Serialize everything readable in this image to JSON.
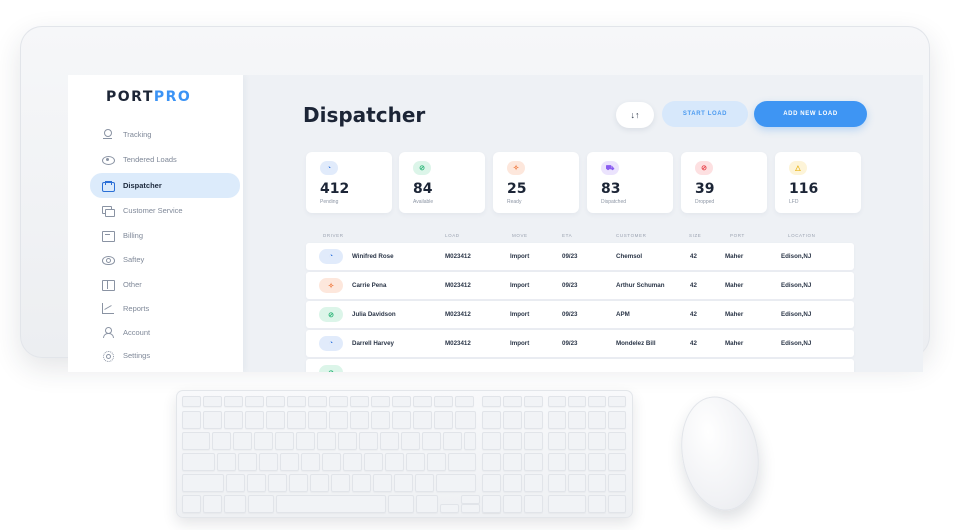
{
  "brand": {
    "logo_main": "PORT",
    "logo_accent": "PRO"
  },
  "sidebar": {
    "items": [
      {
        "label": "Tracking",
        "icon": "location-pin-icon",
        "active": false
      },
      {
        "label": "Tendered Loads",
        "icon": "eye-icon",
        "active": false
      },
      {
        "label": "Dispatcher",
        "icon": "truck-card-icon",
        "active": true
      },
      {
        "label": "Customer Service",
        "icon": "chat-icon",
        "active": false
      },
      {
        "label": "Billing",
        "icon": "billing-icon",
        "active": false
      },
      {
        "label": "Saftey",
        "icon": "shield-icon",
        "active": false
      },
      {
        "label": "Other",
        "icon": "grid-icon",
        "active": false
      },
      {
        "label": "Reports",
        "icon": "chart-icon",
        "active": false
      },
      {
        "label": "Account",
        "icon": "user-icon",
        "active": false
      },
      {
        "label": "Settings",
        "icon": "gear-icon",
        "active": false
      }
    ]
  },
  "header": {
    "title": "Dispatcher",
    "filter_glyph": "↓↑",
    "start_load_label": "START LOAD",
    "add_new_load_label": "ADD NEW LOAD"
  },
  "stats": [
    {
      "value": "412",
      "label": "Pending",
      "icon": "pending-icon",
      "glyph": "◔",
      "color": "#3b7be0",
      "bg": "#e1ebfb"
    },
    {
      "value": "84",
      "label": "Available",
      "icon": "available-icon",
      "glyph": "⊘",
      "color": "#2fb67a",
      "bg": "#dcf5e9"
    },
    {
      "value": "25",
      "label": "Ready",
      "icon": "ready-icon",
      "glyph": "✧",
      "color": "#f0783c",
      "bg": "#fde7dc"
    },
    {
      "value": "83",
      "label": "Dispatched",
      "icon": "dispatched-icon",
      "glyph": "⛟",
      "color": "#8a5cf0",
      "bg": "#ebe3fd"
    },
    {
      "value": "39",
      "label": "Dropped",
      "icon": "dropped-icon",
      "glyph": "⊘",
      "color": "#e8434a",
      "bg": "#fde0e1"
    },
    {
      "value": "116",
      "label": "LFD",
      "icon": "lfd-icon",
      "glyph": "△",
      "color": "#e8b417",
      "bg": "#fdf4d8"
    }
  ],
  "table": {
    "headers": [
      "DRIVER",
      "LOAD",
      "MOVE",
      "ETA",
      "CUSTOMER",
      "SIZE",
      "PORT",
      "LOCATION"
    ],
    "rows": [
      {
        "driver": "Winifred Rose",
        "load": "M023412",
        "move": "Import",
        "eta": "09/23",
        "customer": "Chemsol",
        "size": "42",
        "port": "Maher",
        "location": "Edison,NJ",
        "status_glyph": "◔",
        "status_color": "#3b7be0",
        "status_bg": "#e1ebfb"
      },
      {
        "driver": "Carrie Pena",
        "load": "M023412",
        "move": "Import",
        "eta": "09/23",
        "customer": "Arthur Schuman",
        "size": "42",
        "port": "Maher",
        "location": "Edison,NJ",
        "status_glyph": "✧",
        "status_color": "#f0783c",
        "status_bg": "#fde7dc"
      },
      {
        "driver": "Julia Davidson",
        "load": "M023412",
        "move": "Import",
        "eta": "09/23",
        "customer": "APM",
        "size": "42",
        "port": "Maher",
        "location": "Edison,NJ",
        "status_glyph": "⊘",
        "status_color": "#2fb67a",
        "status_bg": "#dcf5e9"
      },
      {
        "driver": "Darrell Harvey",
        "load": "M023412",
        "move": "Import",
        "eta": "09/23",
        "customer": "Mondelez Bill",
        "size": "42",
        "port": "Maher",
        "location": "Edison,NJ",
        "status_glyph": "◔",
        "status_color": "#3b7be0",
        "status_bg": "#e1ebfb"
      },
      {
        "driver": "",
        "load": "",
        "move": "",
        "eta": "",
        "customer": "",
        "size": "",
        "port": "",
        "location": "",
        "status_glyph": "⊘",
        "status_color": "#2fb67a",
        "status_bg": "#dcf5e9"
      }
    ]
  }
}
